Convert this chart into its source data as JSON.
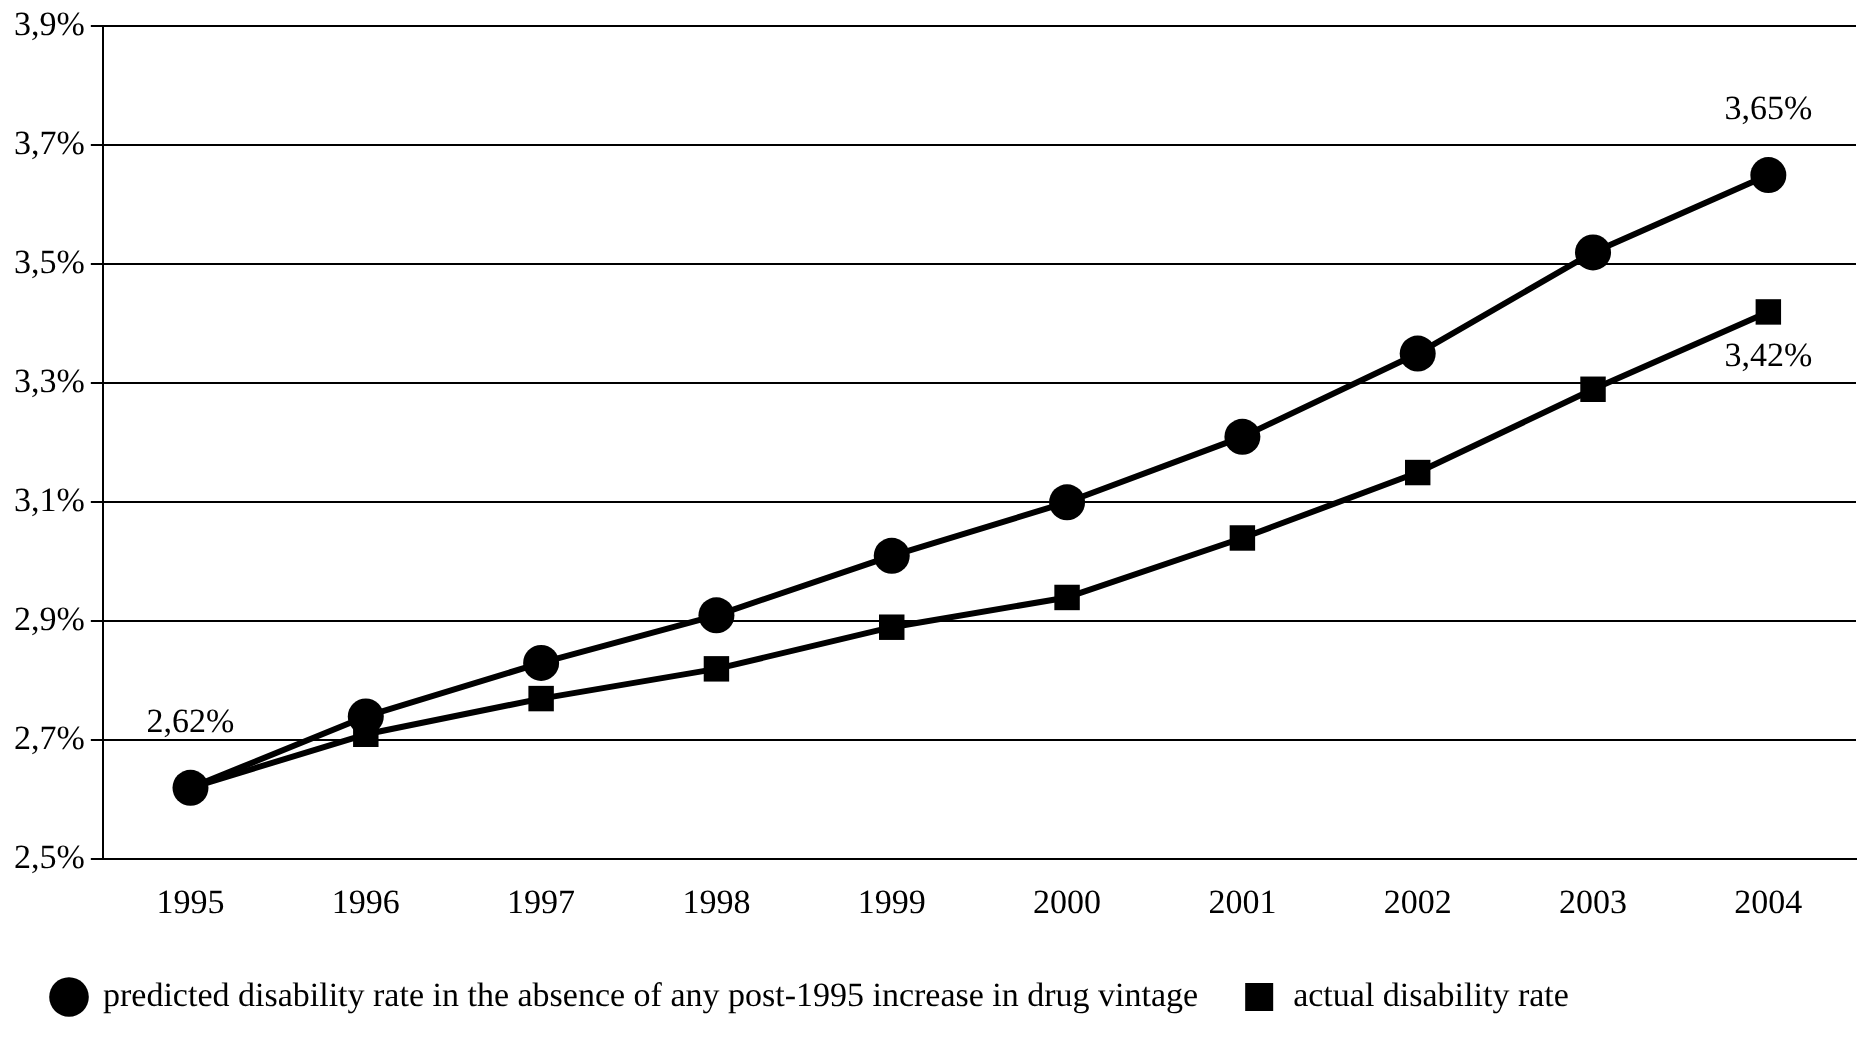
{
  "chart_data": {
    "type": "line",
    "categories": [
      "1995",
      "1996",
      "1997",
      "1998",
      "1999",
      "2000",
      "2001",
      "2002",
      "2003",
      "2004"
    ],
    "series": [
      {
        "name": "predicted disability rate in the absence of any post-1995 increase in drug vintage",
        "color": "#000000",
        "marker": "circle",
        "values": [
          2.62,
          2.74,
          2.83,
          2.91,
          3.01,
          3.1,
          3.21,
          3.35,
          3.52,
          3.65
        ],
        "value_labels": [
          "2,62%",
          null,
          null,
          null,
          null,
          null,
          null,
          null,
          null,
          "3,65%"
        ]
      },
      {
        "name": "actual disability rate",
        "color": "#000000",
        "marker": "square",
        "values": [
          2.62,
          2.71,
          2.77,
          2.82,
          2.89,
          2.94,
          3.04,
          3.15,
          3.29,
          3.42
        ],
        "value_labels": [
          null,
          null,
          null,
          null,
          null,
          null,
          null,
          null,
          null,
          "3,42%"
        ]
      }
    ],
    "ylim": [
      2.5,
      3.9
    ],
    "yticks": [
      {
        "value": 2.5,
        "label": "2,5%"
      },
      {
        "value": 2.7,
        "label": "2,7%"
      },
      {
        "value": 2.9,
        "label": "2,9%"
      },
      {
        "value": 3.1,
        "label": "3,1%"
      },
      {
        "value": 3.3,
        "label": "3,3%"
      },
      {
        "value": 3.5,
        "label": "3,5%"
      },
      {
        "value": 3.7,
        "label": "3,7%"
      },
      {
        "value": 3.9,
        "label": "3,9%"
      }
    ],
    "grid": "y",
    "legend": "bottom",
    "line_style": "solid"
  }
}
